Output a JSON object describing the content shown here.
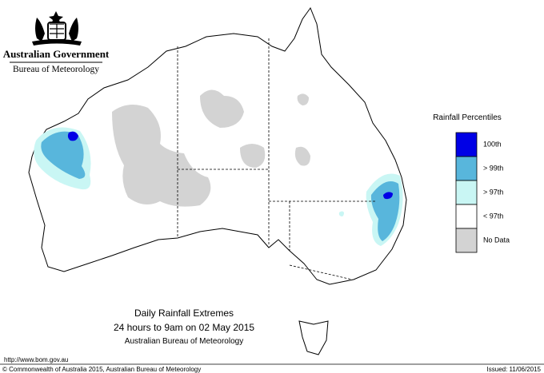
{
  "header": {
    "government": "Australian Government",
    "agency": "Bureau of Meteorology"
  },
  "legend": {
    "title": "Rainfall Percentiles",
    "items": [
      {
        "label": "100th",
        "color": "#0000e6"
      },
      {
        "label": "> 99th",
        "color": "#58b6dc"
      },
      {
        "label": "> 97th",
        "color": "#c9f6f4"
      },
      {
        "label": "< 97th",
        "color": "#ffffff"
      },
      {
        "label": "No Data",
        "color": "#d3d3d3"
      }
    ]
  },
  "caption": {
    "title": "Daily Rainfall Extremes",
    "period": "24 hours to 9am on 02 May 2015",
    "source": "Australian Bureau of Meteorology"
  },
  "footer": {
    "url": "http://www.bom.gov.au",
    "copyright": "© Commonwealth of Australia 2015, Australian Bureau of Meteorology",
    "issued": "Issued: 11/06/2015"
  }
}
